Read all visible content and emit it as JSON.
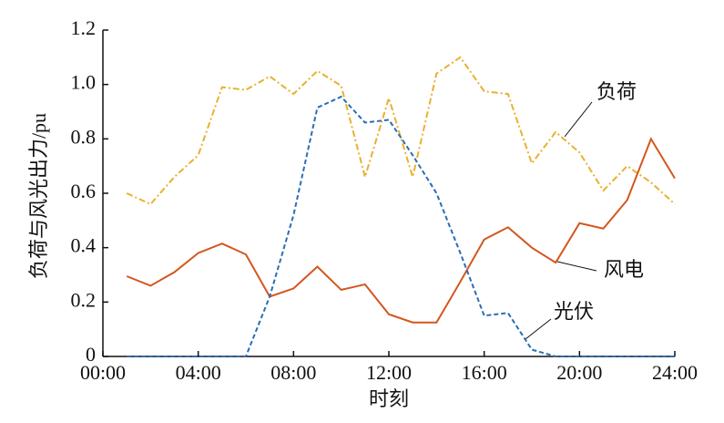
{
  "chart_data": {
    "type": "line",
    "x_label": "时刻",
    "y_label": "负荷与风光出力/pu",
    "x": [
      1,
      2,
      3,
      4,
      5,
      6,
      7,
      8,
      9,
      10,
      11,
      12,
      13,
      14,
      15,
      16,
      17,
      18,
      19,
      20,
      21,
      22,
      23,
      24
    ],
    "series": [
      {
        "name": "负荷",
        "color": "#e8b12e",
        "dash": "7 3 2 3",
        "values": [
          0.6,
          0.56,
          0.66,
          0.74,
          0.99,
          0.98,
          1.03,
          0.965,
          1.05,
          0.995,
          0.66,
          0.95,
          0.66,
          1.04,
          1.1,
          0.975,
          0.965,
          0.71,
          0.825,
          0.75,
          0.61,
          0.7,
          0.64,
          0.56
        ]
      },
      {
        "name": "风电",
        "color": "#d4561e",
        "dash": "",
        "values": [
          0.295,
          0.26,
          0.31,
          0.38,
          0.415,
          0.375,
          0.22,
          0.25,
          0.33,
          0.245,
          0.265,
          0.155,
          0.125,
          0.125,
          0.275,
          0.43,
          0.475,
          0.4,
          0.345,
          0.49,
          0.47,
          0.575,
          0.8,
          0.655
        ]
      },
      {
        "name": "光伏",
        "color": "#2a6db5",
        "dash": "5 3",
        "values": [
          0,
          0,
          0,
          0,
          0,
          0,
          0.22,
          0.52,
          0.915,
          0.955,
          0.86,
          0.87,
          0.74,
          0.6,
          0.38,
          0.15,
          0.16,
          0.025,
          0,
          0,
          0,
          0,
          0,
          0
        ]
      }
    ],
    "xlim": [
      0,
      24
    ],
    "xticks": [
      {
        "value": 0,
        "label": "00:00"
      },
      {
        "value": 4,
        "label": "04:00"
      },
      {
        "value": 8,
        "label": "08:00"
      },
      {
        "value": 12,
        "label": "12:00"
      },
      {
        "value": 16,
        "label": "16:00"
      },
      {
        "value": 20,
        "label": "20:00"
      },
      {
        "value": 24,
        "label": "24:00"
      }
    ],
    "ylim": [
      0,
      1.2
    ],
    "yticks": [
      0,
      0.2,
      0.4,
      0.6,
      0.8,
      {
        "value": 1.0,
        "label": "1.0"
      },
      1.2
    ]
  }
}
